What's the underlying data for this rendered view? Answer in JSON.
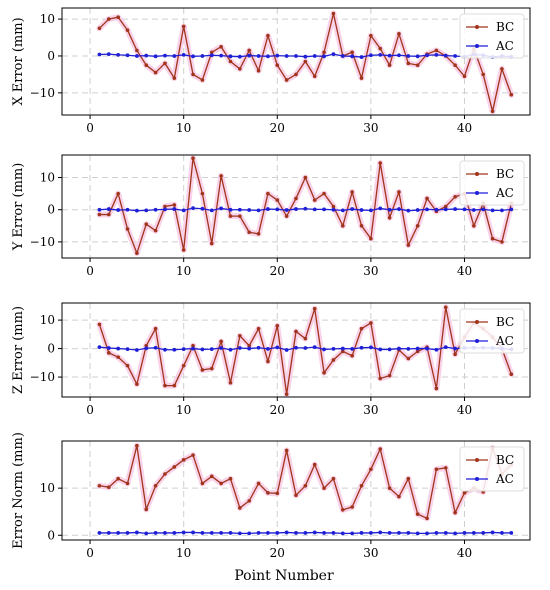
{
  "chart_data": [
    {
      "type": "line",
      "ylabel": "X Error (mm)",
      "xlabel": "",
      "xlim": [
        -3,
        47
      ],
      "ylim": [
        -16,
        13
      ],
      "xticks": [
        0,
        10,
        20,
        30,
        40
      ],
      "yticks": [
        -10,
        0,
        10
      ],
      "grid": true,
      "legend": "upper right",
      "x": [
        1,
        2,
        3,
        4,
        5,
        6,
        7,
        8,
        9,
        10,
        11,
        12,
        13,
        14,
        15,
        16,
        17,
        18,
        19,
        20,
        21,
        22,
        23,
        24,
        25,
        26,
        27,
        28,
        29,
        30,
        31,
        32,
        33,
        34,
        35,
        36,
        37,
        38,
        39,
        40,
        41,
        42,
        43,
        44,
        45
      ],
      "series": [
        {
          "name": "BC",
          "color": "#a1341c",
          "values": [
            7.5,
            10,
            10.5,
            7,
            1.5,
            -2.5,
            -4.5,
            -2,
            -6,
            8,
            -5,
            -6.5,
            1,
            2.5,
            -1.5,
            -3.5,
            1.5,
            -4,
            5.5,
            -2.5,
            -6.5,
            -5,
            -1.5,
            -5.5,
            1,
            11.5,
            0,
            1,
            -6,
            5.5,
            2,
            -2.5,
            6,
            -2,
            -2.5,
            0.5,
            1.5,
            0,
            -2.5,
            -5.5,
            2,
            -5,
            -15,
            -3.5,
            -10.5
          ]
        },
        {
          "name": "AC",
          "color": "#1f1fd6",
          "values": [
            0.4,
            0.5,
            0.3,
            0.2,
            0,
            0.1,
            -0.1,
            0.1,
            0,
            0.3,
            -0.1,
            0,
            0.2,
            0.1,
            -0.1,
            -0.2,
            0.1,
            0,
            -0.1,
            0.1,
            0,
            0,
            -0.2,
            0,
            -0.1,
            0.5,
            0,
            -0.1,
            -0.3,
            0.2,
            0.3,
            0.1,
            0.2,
            0,
            -0.1,
            0.2,
            0.3,
            0.1,
            0,
            -0.2,
            0.4,
            0.2,
            -0.3,
            0,
            -0.2
          ]
        }
      ]
    },
    {
      "type": "line",
      "ylabel": "Y Error (mm)",
      "xlabel": "",
      "xlim": [
        -3,
        47
      ],
      "ylim": [
        -15,
        17
      ],
      "xticks": [
        0,
        10,
        20,
        30,
        40
      ],
      "yticks": [
        -10,
        0,
        10
      ],
      "grid": true,
      "legend": "upper right",
      "x": [
        1,
        2,
        3,
        4,
        5,
        6,
        7,
        8,
        9,
        10,
        11,
        12,
        13,
        14,
        15,
        16,
        17,
        18,
        19,
        20,
        21,
        22,
        23,
        24,
        25,
        26,
        27,
        28,
        29,
        30,
        31,
        32,
        33,
        34,
        35,
        36,
        37,
        38,
        39,
        40,
        41,
        42,
        43,
        44,
        45
      ],
      "series": [
        {
          "name": "BC",
          "color": "#a1341c",
          "values": [
            -1.5,
            -1.5,
            5,
            -6,
            -13.5,
            -4.5,
            -6.5,
            1,
            1.5,
            -12.5,
            16,
            5,
            -10.5,
            10.5,
            -2,
            -2,
            -7,
            -7.5,
            5,
            3,
            -2,
            3.5,
            10,
            3,
            5,
            1,
            -5,
            5.5,
            -5,
            -9,
            14.5,
            -2.5,
            5.5,
            -11,
            -5,
            3.5,
            -0.5,
            1,
            4,
            5,
            -5,
            2,
            -9,
            -10,
            2
          ]
        },
        {
          "name": "AC",
          "color": "#1f1fd6",
          "values": [
            0,
            0.2,
            -0.1,
            0,
            -0.3,
            -0.2,
            0,
            0.1,
            0.2,
            -0.2,
            0.5,
            0.3,
            -0.2,
            0.4,
            0,
            0,
            -0.1,
            -0.2,
            0.2,
            0.1,
            -0.1,
            0.2,
            0.3,
            0.1,
            0.1,
            0,
            -0.2,
            0.2,
            -0.1,
            -0.2,
            0.4,
            0,
            0.2,
            -0.3,
            -0.1,
            0.1,
            0,
            0.1,
            0.2,
            0.1,
            -0.1,
            0.1,
            -0.2,
            -0.2,
            0.1
          ]
        }
      ]
    },
    {
      "type": "line",
      "ylabel": "Z Error (mm)",
      "xlabel": "",
      "xlim": [
        -3,
        47
      ],
      "ylim": [
        -17,
        16
      ],
      "xticks": [
        0,
        10,
        20,
        30,
        40
      ],
      "yticks": [
        -10,
        0,
        10
      ],
      "grid": true,
      "legend": "upper right",
      "x": [
        1,
        2,
        3,
        4,
        5,
        6,
        7,
        8,
        9,
        10,
        11,
        12,
        13,
        14,
        15,
        16,
        17,
        18,
        19,
        20,
        21,
        22,
        23,
        24,
        25,
        26,
        27,
        28,
        29,
        30,
        31,
        32,
        33,
        34,
        35,
        36,
        37,
        38,
        39,
        40,
        41,
        42,
        43,
        44,
        45
      ],
      "series": [
        {
          "name": "BC",
          "color": "#a1341c",
          "values": [
            8.5,
            -1.5,
            -3,
            -6,
            -12.5,
            1,
            7,
            -13,
            -13,
            -6,
            1,
            -7.5,
            -7,
            2.5,
            -12,
            4.5,
            1,
            7,
            -4.5,
            8,
            -16,
            6,
            3.5,
            14,
            -8.5,
            -4,
            -1,
            -2.5,
            7,
            9,
            -10.5,
            -9.5,
            -0.5,
            -3.5,
            -1,
            0.5,
            -14,
            14.5,
            -2,
            4,
            9,
            7,
            4,
            0,
            -9
          ]
        },
        {
          "name": "AC",
          "color": "#1f1fd6",
          "values": [
            0.5,
            0.2,
            0,
            -0.2,
            -0.5,
            0.1,
            0.3,
            -0.4,
            -0.4,
            -0.2,
            0,
            -0.3,
            -0.2,
            0.2,
            -0.4,
            0.2,
            0,
            0.3,
            -0.1,
            0.4,
            -0.5,
            0.3,
            0.2,
            0.5,
            -0.3,
            -0.1,
            0,
            -0.1,
            0.3,
            0.4,
            -0.3,
            -0.3,
            0,
            -0.1,
            0,
            0,
            -0.4,
            0.5,
            0,
            0.2,
            0.3,
            0.3,
            0.2,
            0,
            -0.3
          ]
        }
      ]
    },
    {
      "type": "line",
      "ylabel": "Error Norm (mm)",
      "xlabel": "Point Number",
      "xlim": [
        -3,
        47
      ],
      "ylim": [
        -1,
        20
      ],
      "xticks": [
        0,
        10,
        20,
        30,
        40
      ],
      "yticks": [
        0,
        10
      ],
      "grid": true,
      "legend": "upper right",
      "x": [
        1,
        2,
        3,
        4,
        5,
        6,
        7,
        8,
        9,
        10,
        11,
        12,
        13,
        14,
        15,
        16,
        17,
        18,
        19,
        20,
        21,
        22,
        23,
        24,
        25,
        26,
        27,
        28,
        29,
        30,
        31,
        32,
        33,
        34,
        35,
        36,
        37,
        38,
        39,
        40,
        41,
        42,
        43,
        44,
        45
      ],
      "series": [
        {
          "name": "BC",
          "color": "#a1341c",
          "values": [
            10.5,
            10.2,
            12,
            11,
            19,
            5.5,
            10.5,
            13,
            14.5,
            16,
            17,
            11,
            12.5,
            11,
            12,
            5.8,
            7.3,
            11,
            9,
            8.9,
            18,
            8.5,
            10.5,
            15,
            10,
            12,
            5.4,
            6,
            10.5,
            14,
            18.3,
            10,
            8.2,
            12,
            4.5,
            3.6,
            14,
            14.3,
            4.8,
            9,
            10,
            9.2,
            18.5,
            13,
            15
          ]
        },
        {
          "name": "AC",
          "color": "#1f1fd6",
          "values": [
            0.5,
            0.5,
            0.5,
            0.5,
            0.6,
            0.4,
            0.5,
            0.5,
            0.5,
            0.6,
            0.6,
            0.5,
            0.5,
            0.5,
            0.5,
            0.4,
            0.4,
            0.5,
            0.5,
            0.5,
            0.6,
            0.5,
            0.5,
            0.6,
            0.5,
            0.5,
            0.4,
            0.4,
            0.5,
            0.5,
            0.6,
            0.5,
            0.5,
            0.5,
            0.4,
            0.4,
            0.5,
            0.5,
            0.4,
            0.5,
            0.5,
            0.5,
            0.6,
            0.5,
            0.5
          ]
        }
      ]
    }
  ]
}
